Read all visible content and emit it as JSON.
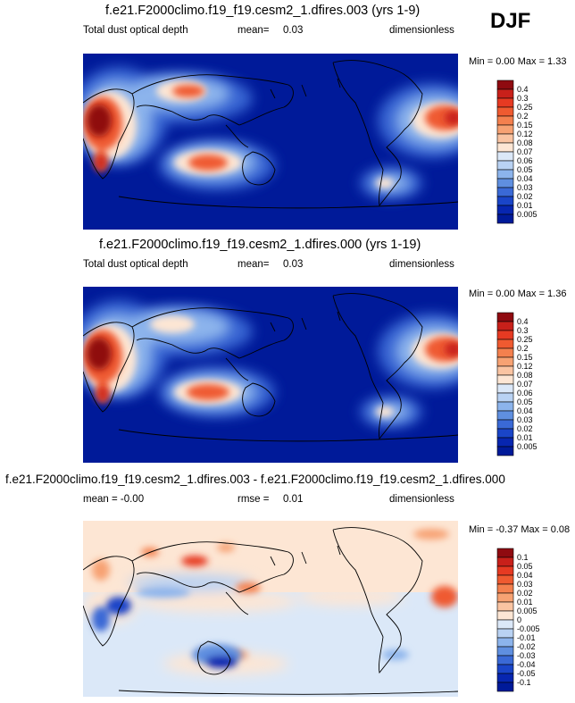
{
  "season": "DJF",
  "panels": [
    {
      "title": "f.e21.F2000climo.f19_f19.cesm2_1.dfires.003 (yrs 1-9)",
      "left_label": "Total dust optical depth",
      "stat_label": "mean=",
      "stat_value": "0.03",
      "units": "dimensionless",
      "minmax": "Min =  0.00 Max =  1.33"
    },
    {
      "title": "f.e21.F2000climo.f19_f19.cesm2_1.dfires.000 (yrs 1-19)",
      "left_label": "Total dust optical depth",
      "stat_label": "mean=",
      "stat_value": "0.03",
      "units": "dimensionless",
      "minmax": "Min =  0.00 Max =  1.36"
    },
    {
      "title": "f.e21.F2000climo.f19_f19.cesm2_1.dfires.003 - f.e21.F2000climo.f19_f19.cesm2_1.dfires.000",
      "left_label": "mean = -0.00",
      "stat_label": "rmse =",
      "stat_value": "0.01",
      "units": "dimensionless",
      "minmax": "Min = -0.37 Max =  0.08"
    }
  ],
  "chart_data": [
    {
      "type": "heatmap",
      "variable": "Total dust optical depth",
      "mean": 0.03,
      "min": 0.0,
      "max": 1.33,
      "colorbar_levels": [
        "0.4",
        "0.3",
        "0.25",
        "0.2",
        "0.15",
        "0.12",
        "0.08",
        "0.07",
        "0.06",
        "0.05",
        "0.04",
        "0.03",
        "0.02",
        "0.01",
        "0.005"
      ],
      "colorbar_colors": [
        "#8f0a10",
        "#c8201a",
        "#e63a22",
        "#ef5a30",
        "#f4804e",
        "#f7a273",
        "#fac4a2",
        "#fde6d4",
        "#dbe8f8",
        "#b9d2f3",
        "#8cb4ec",
        "#5f8fe0",
        "#3a69d6",
        "#1a45c8",
        "#0726b0",
        "#001a99"
      ]
    },
    {
      "type": "heatmap",
      "variable": "Total dust optical depth",
      "mean": 0.03,
      "min": 0.0,
      "max": 1.36,
      "colorbar_levels": [
        "0.4",
        "0.3",
        "0.25",
        "0.2",
        "0.15",
        "0.12",
        "0.08",
        "0.07",
        "0.06",
        "0.05",
        "0.04",
        "0.03",
        "0.02",
        "0.01",
        "0.005"
      ],
      "colorbar_colors": [
        "#8f0a10",
        "#c8201a",
        "#e63a22",
        "#ef5a30",
        "#f4804e",
        "#f7a273",
        "#fac4a2",
        "#fde6d4",
        "#dbe8f8",
        "#b9d2f3",
        "#8cb4ec",
        "#5f8fe0",
        "#3a69d6",
        "#1a45c8",
        "#0726b0",
        "#001a99"
      ]
    },
    {
      "type": "heatmap",
      "variable": "difference",
      "mean": -0.0,
      "rmse": 0.01,
      "min": -0.37,
      "max": 0.08,
      "colorbar_levels": [
        "0.1",
        "0.05",
        "0.04",
        "0.03",
        "0.02",
        "0.01",
        "0.005",
        "0",
        "-0.005",
        "-0.01",
        "-0.02",
        "-0.03",
        "-0.04",
        "-0.05",
        "-0.1"
      ],
      "colorbar_colors": [
        "#8f0a10",
        "#c8201a",
        "#e63a22",
        "#ef5a30",
        "#f4804e",
        "#f7a273",
        "#fac4a2",
        "#fde6d4",
        "#dbe8f8",
        "#b9d2f3",
        "#8cb4ec",
        "#5f8fe0",
        "#3a69d6",
        "#1a45c8",
        "#0726b0",
        "#001a99"
      ]
    }
  ]
}
